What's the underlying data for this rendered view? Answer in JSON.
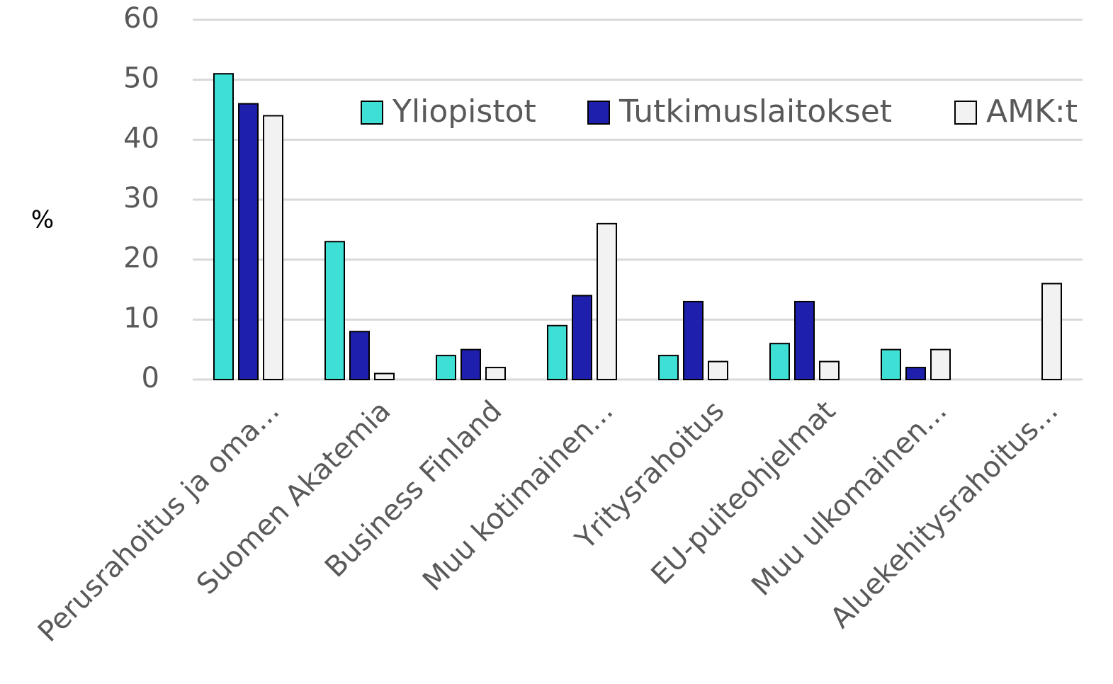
{
  "chart_data": {
    "type": "bar",
    "y_label": "%",
    "categories": [
      "Perusrahoitus ja oma...",
      "Suomen Akatemia",
      "Business Finland",
      "Muu kotimainen...",
      "Yritysrahoitus",
      "EU-puiteohjelmat",
      "Muu ulkomainen...",
      "Aluekehitysrahoitus..."
    ],
    "series": [
      {
        "name": "Yliopistot",
        "color": "#3ee0d6",
        "values": [
          51,
          23,
          4,
          9,
          4,
          6,
          5,
          null
        ]
      },
      {
        "name": "Tutkimuslaitokset",
        "color": "#1f1fae",
        "values": [
          46,
          8,
          5,
          14,
          13,
          13,
          2,
          null
        ]
      },
      {
        "name": "AMK:t",
        "color": "#f2f2f2",
        "values": [
          44,
          1,
          2,
          26,
          3,
          3,
          5,
          16
        ]
      }
    ],
    "ylim": [
      0,
      60
    ],
    "yticks": [
      0,
      10,
      20,
      30,
      40,
      50,
      60
    ],
    "grid": true,
    "legend": "upper right"
  }
}
